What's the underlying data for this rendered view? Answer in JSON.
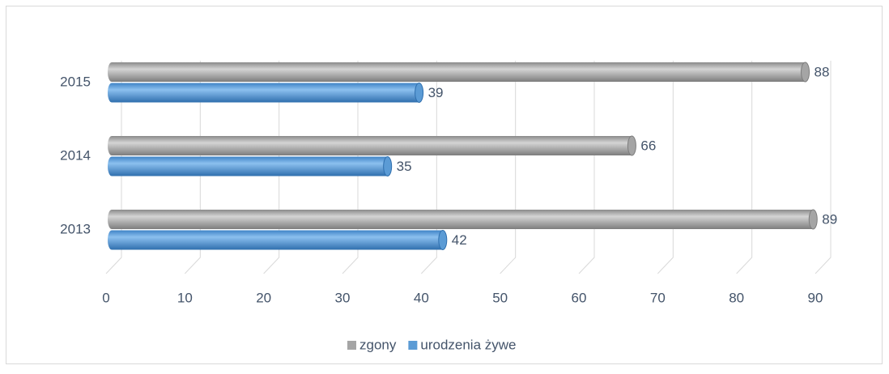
{
  "chart_data": {
    "type": "bar",
    "orientation": "horizontal",
    "categories": [
      "2013",
      "2014",
      "2015"
    ],
    "series": [
      {
        "name": "zgony",
        "color": "#a5a5a5",
        "values": [
          89,
          66,
          88
        ]
      },
      {
        "name": "urodzenia żywe",
        "color": "#5b9bd5",
        "values": [
          42,
          35,
          39
        ]
      }
    ],
    "xlim": [
      0,
      90
    ],
    "xticks": [
      0,
      10,
      20,
      30,
      40,
      50,
      60,
      70,
      80,
      90
    ],
    "grid": true,
    "legend": "bottom"
  }
}
